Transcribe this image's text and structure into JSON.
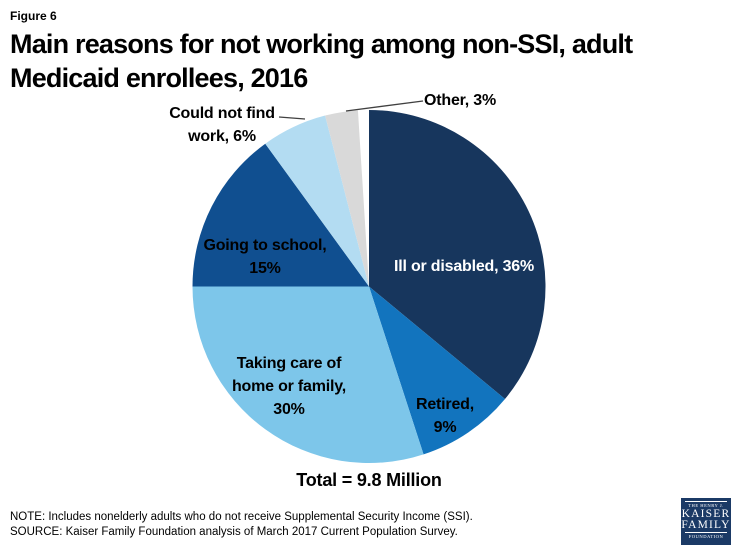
{
  "figure_label": "Figure 6",
  "title_lines": [
    "Main reasons for not working among non-SSI, adult",
    "Medicaid enrollees, 2016"
  ],
  "chart_data": {
    "type": "pie",
    "title": "Main reasons for not working among non-SSI, adult Medicaid enrollees, 2016",
    "total_label": "Total = 9.8 Million",
    "start_angle_deg": 0,
    "direction": "clockwise-from-top",
    "slices": [
      {
        "label": "Ill or disabled",
        "pct": 36,
        "color": "#17365D",
        "label_lines": [
          "Ill or disabled, 36%"
        ],
        "label_color": "#ffffff"
      },
      {
        "label": "Retired",
        "pct": 9,
        "color": "#1274BE",
        "label_lines": [
          "Retired,",
          "9%"
        ],
        "label_color": "#000000"
      },
      {
        "label": "Taking care of home or family",
        "pct": 30,
        "color": "#7DC6EA",
        "label_lines": [
          "Taking care of",
          "home or family,",
          "30%"
        ],
        "label_color": "#000000"
      },
      {
        "label": "Going to school",
        "pct": 15,
        "color": "#104F90",
        "label_lines": [
          "Going to school,",
          "15%"
        ],
        "label_color": "#000000"
      },
      {
        "label": "Could not find work",
        "pct": 6,
        "color": "#B3DCF2",
        "label_lines": [
          "Could not find",
          "work, 6%"
        ],
        "label_color": "#000000"
      },
      {
        "label": "Other",
        "pct": 3,
        "color": "#D9D9D9",
        "label_lines": [
          "Other, 3%"
        ],
        "label_color": "#000000"
      }
    ]
  },
  "footnotes": {
    "note": "NOTE: Includes nonelderly adults who do not receive Supplemental Security Income (SSI).",
    "source": "SOURCE: Kaiser Family Foundation analysis of March 2017 Current Population Survey."
  },
  "logo": {
    "line1": "THE HENRY J.",
    "line2": "KAISER",
    "line3": "FAMILY",
    "line4": "FOUNDATION",
    "bg_color": "#1B3A66"
  }
}
